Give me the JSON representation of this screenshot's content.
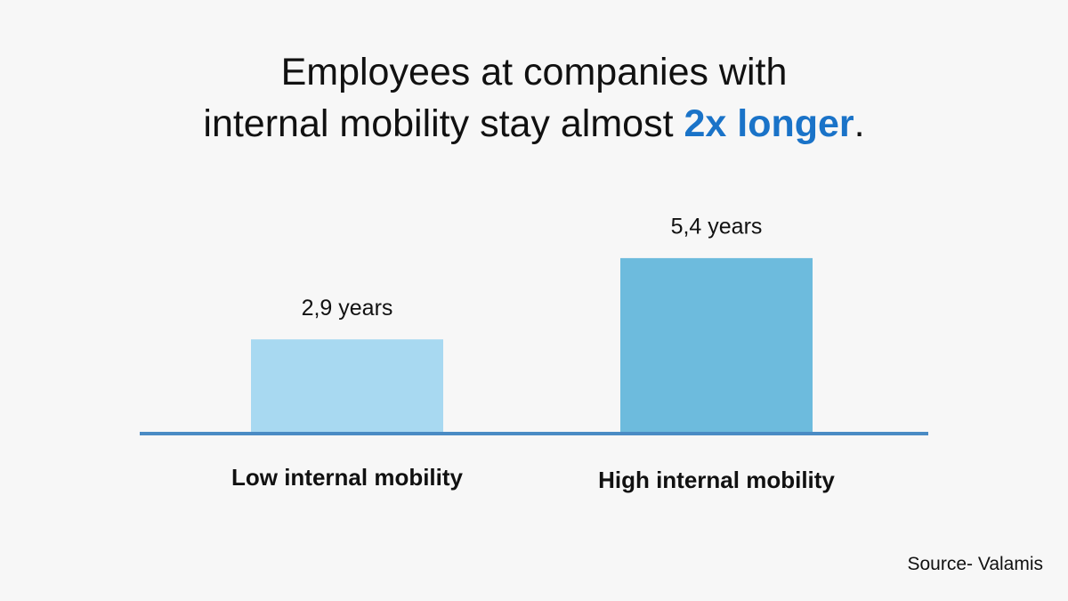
{
  "chart_data": {
    "type": "bar",
    "title": [
      "Employees at companies with",
      "internal mobility stay almost",
      "2x longer",
      "."
    ],
    "categories": [
      "Low internal mobility",
      "High internal mobility"
    ],
    "values": [
      2.9,
      5.4
    ],
    "value_labels": [
      "2,9 years",
      "5,4 years"
    ],
    "colors": [
      "#a8d9f1",
      "#6dbbdd"
    ],
    "axis_color": "#4a8bc4",
    "source": "Source- Valamis"
  }
}
